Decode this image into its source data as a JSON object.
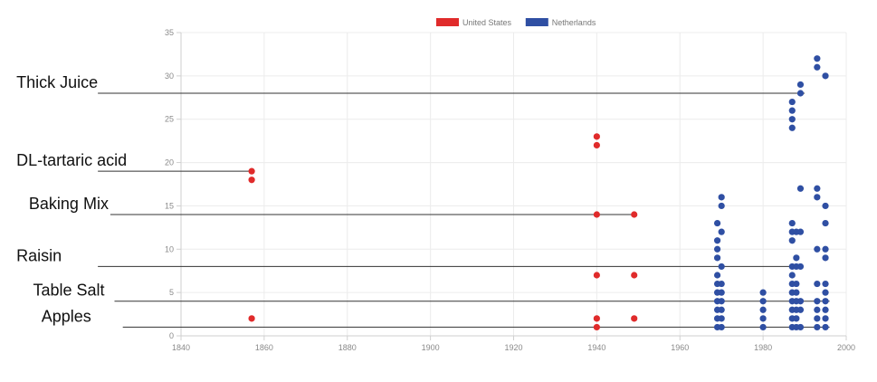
{
  "chart_data": {
    "type": "scatter",
    "xlim": [
      1840,
      2000
    ],
    "ylim": [
      0,
      35
    ],
    "x_ticks": [
      "1840",
      "1860",
      "1880",
      "1900",
      "1920",
      "1940",
      "1960",
      "1980",
      "2000"
    ],
    "y_ticks": [
      "0",
      "5",
      "10",
      "15",
      "20",
      "25",
      "30",
      "35"
    ],
    "grid": true,
    "legend_placement": "top-center",
    "series": [
      {
        "name": "United States",
        "color": "#e02b2b",
        "points": [
          [
            1857,
            2
          ],
          [
            1857,
            18
          ],
          [
            1857,
            19
          ],
          [
            1940,
            1
          ],
          [
            1940,
            2
          ],
          [
            1940,
            7
          ],
          [
            1940,
            14
          ],
          [
            1940,
            22
          ],
          [
            1940,
            23
          ],
          [
            1949,
            2
          ],
          [
            1949,
            7
          ],
          [
            1949,
            14
          ]
        ]
      },
      {
        "name": "Netherlands",
        "color": "#2f4fa3",
        "points": [
          [
            1969,
            1
          ],
          [
            1969,
            2
          ],
          [
            1969,
            3
          ],
          [
            1969,
            4
          ],
          [
            1969,
            5
          ],
          [
            1969,
            6
          ],
          [
            1969,
            7
          ],
          [
            1969,
            9
          ],
          [
            1969,
            10
          ],
          [
            1969,
            11
          ],
          [
            1969,
            13
          ],
          [
            1970,
            1
          ],
          [
            1970,
            2
          ],
          [
            1970,
            3
          ],
          [
            1970,
            4
          ],
          [
            1970,
            5
          ],
          [
            1970,
            6
          ],
          [
            1970,
            8
          ],
          [
            1970,
            12
          ],
          [
            1970,
            15
          ],
          [
            1970,
            16
          ],
          [
            1980,
            1
          ],
          [
            1980,
            2
          ],
          [
            1980,
            3
          ],
          [
            1980,
            4
          ],
          [
            1980,
            5
          ],
          [
            1987,
            1
          ],
          [
            1987,
            2
          ],
          [
            1987,
            3
          ],
          [
            1987,
            4
          ],
          [
            1987,
            5
          ],
          [
            1987,
            6
          ],
          [
            1987,
            7
          ],
          [
            1987,
            8
          ],
          [
            1987,
            11
          ],
          [
            1987,
            12
          ],
          [
            1987,
            13
          ],
          [
            1987,
            24
          ],
          [
            1987,
            25
          ],
          [
            1987,
            26
          ],
          [
            1987,
            27
          ],
          [
            1988,
            1
          ],
          [
            1988,
            2
          ],
          [
            1988,
            3
          ],
          [
            1988,
            4
          ],
          [
            1988,
            5
          ],
          [
            1988,
            6
          ],
          [
            1988,
            8
          ],
          [
            1988,
            9
          ],
          [
            1988,
            12
          ],
          [
            1989,
            1
          ],
          [
            1989,
            3
          ],
          [
            1989,
            4
          ],
          [
            1989,
            8
          ],
          [
            1989,
            12
          ],
          [
            1989,
            17
          ],
          [
            1989,
            28
          ],
          [
            1989,
            29
          ],
          [
            1993,
            1
          ],
          [
            1993,
            2
          ],
          [
            1993,
            3
          ],
          [
            1993,
            4
          ],
          [
            1993,
            6
          ],
          [
            1993,
            10
          ],
          [
            1993,
            16
          ],
          [
            1993,
            17
          ],
          [
            1993,
            31
          ],
          [
            1993,
            32
          ],
          [
            1995,
            1
          ],
          [
            1995,
            2
          ],
          [
            1995,
            3
          ],
          [
            1995,
            4
          ],
          [
            1995,
            5
          ],
          [
            1995,
            6
          ],
          [
            1995,
            9
          ],
          [
            1995,
            10
          ],
          [
            1995,
            13
          ],
          [
            1995,
            15
          ],
          [
            1995,
            30
          ]
        ]
      }
    ],
    "annotations": [
      {
        "text": "Thick Juice",
        "y": 28,
        "line_start_x": 1820,
        "line_end_x": 1990
      },
      {
        "text": "DL-tartaric acid",
        "y": 19,
        "line_start_x": 1820,
        "line_end_x": 1857
      },
      {
        "text": "Baking Mix",
        "y": 14,
        "line_start_x": 1823,
        "line_end_x": 1949
      },
      {
        "text": "Raisin",
        "y": 8,
        "line_start_x": 1820,
        "line_end_x": 1989
      },
      {
        "text": "Table Salt",
        "y": 4,
        "line_start_x": 1824,
        "line_end_x": 1996
      },
      {
        "text": "Apples",
        "y": 1,
        "line_start_x": 1826,
        "line_end_x": 1996
      }
    ]
  }
}
